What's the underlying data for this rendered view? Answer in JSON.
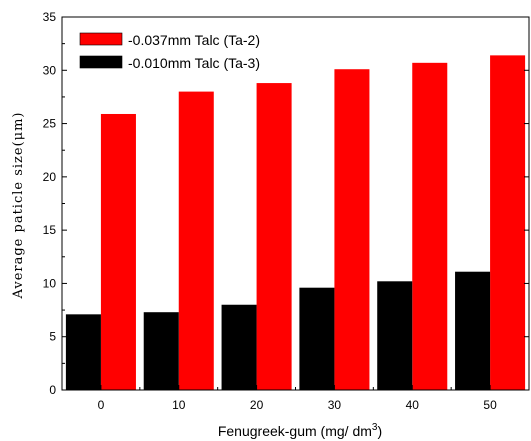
{
  "chart_data": {
    "type": "bar",
    "xlabel": "Fenugreek-gum (mg/ dm",
    "xlabel_sup": "3",
    "xlabel_end": ")",
    "ylabel": "Average paticle size(μm)",
    "ylim": [
      0,
      35
    ],
    "ytick_labels": [
      "0",
      "5",
      "10",
      "15",
      "20",
      "25",
      "30",
      "35"
    ],
    "categories": [
      "0",
      "10",
      "20",
      "30",
      "40",
      "50"
    ],
    "legend_position": "top-left",
    "grid": false,
    "series": [
      {
        "name": "-0.037mm Talc (Ta-2)",
        "color": "#ff0000",
        "values": [
          25.9,
          28.0,
          28.8,
          30.1,
          30.7,
          31.4
        ]
      },
      {
        "name": "-0.010mm Talc (Ta-3)",
        "color": "#000000",
        "values": [
          7.1,
          7.3,
          8.0,
          9.6,
          10.2,
          11.1
        ]
      }
    ]
  }
}
